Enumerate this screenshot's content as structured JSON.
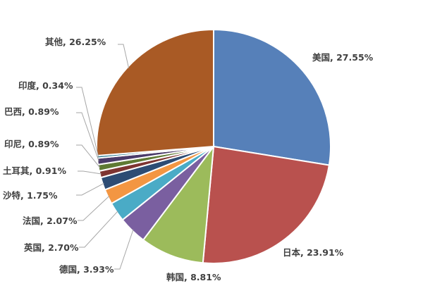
{
  "chart_data": {
    "type": "pie",
    "title": "",
    "legend": "none",
    "slices": [
      {
        "name": "美国",
        "value": 27.55,
        "label": "美国, 27.55%",
        "color": "#5680b9"
      },
      {
        "name": "日本",
        "value": 23.91,
        "label": "日本, 23.91%",
        "color": "#b9514e"
      },
      {
        "name": "韩国",
        "value": 8.81,
        "label": "韩国, 8.81%",
        "color": "#9cbb5b"
      },
      {
        "name": "德国",
        "value": 3.93,
        "label": "德国, 3.93%",
        "color": "#7a5fa0"
      },
      {
        "name": "英国",
        "value": 2.7,
        "label": "英国, 2.70%",
        "color": "#4aabc6"
      },
      {
        "name": "法国",
        "value": 2.07,
        "label": "法国, 2.07%",
        "color": "#f39642"
      },
      {
        "name": "沙特",
        "value": 1.75,
        "label": "沙特, 1.75%",
        "color": "#2d4c74"
      },
      {
        "name": "土耳其",
        "value": 0.91,
        "label": "土耳其, 0.91%",
        "color": "#7e3432"
      },
      {
        "name": "印尼",
        "value": 0.89,
        "label": "印尼, 0.89%",
        "color": "#5f7a34"
      },
      {
        "name": "巴西",
        "value": 0.89,
        "label": "巴西, 0.89%",
        "color": "#4b3b6a"
      },
      {
        "name": "印度",
        "value": 0.34,
        "label": "印度, 0.34%",
        "color": "#2a7a8f"
      },
      {
        "name": "其他",
        "value": 26.25,
        "label": "其他, 26.25%",
        "color": "#a95a25"
      }
    ]
  }
}
